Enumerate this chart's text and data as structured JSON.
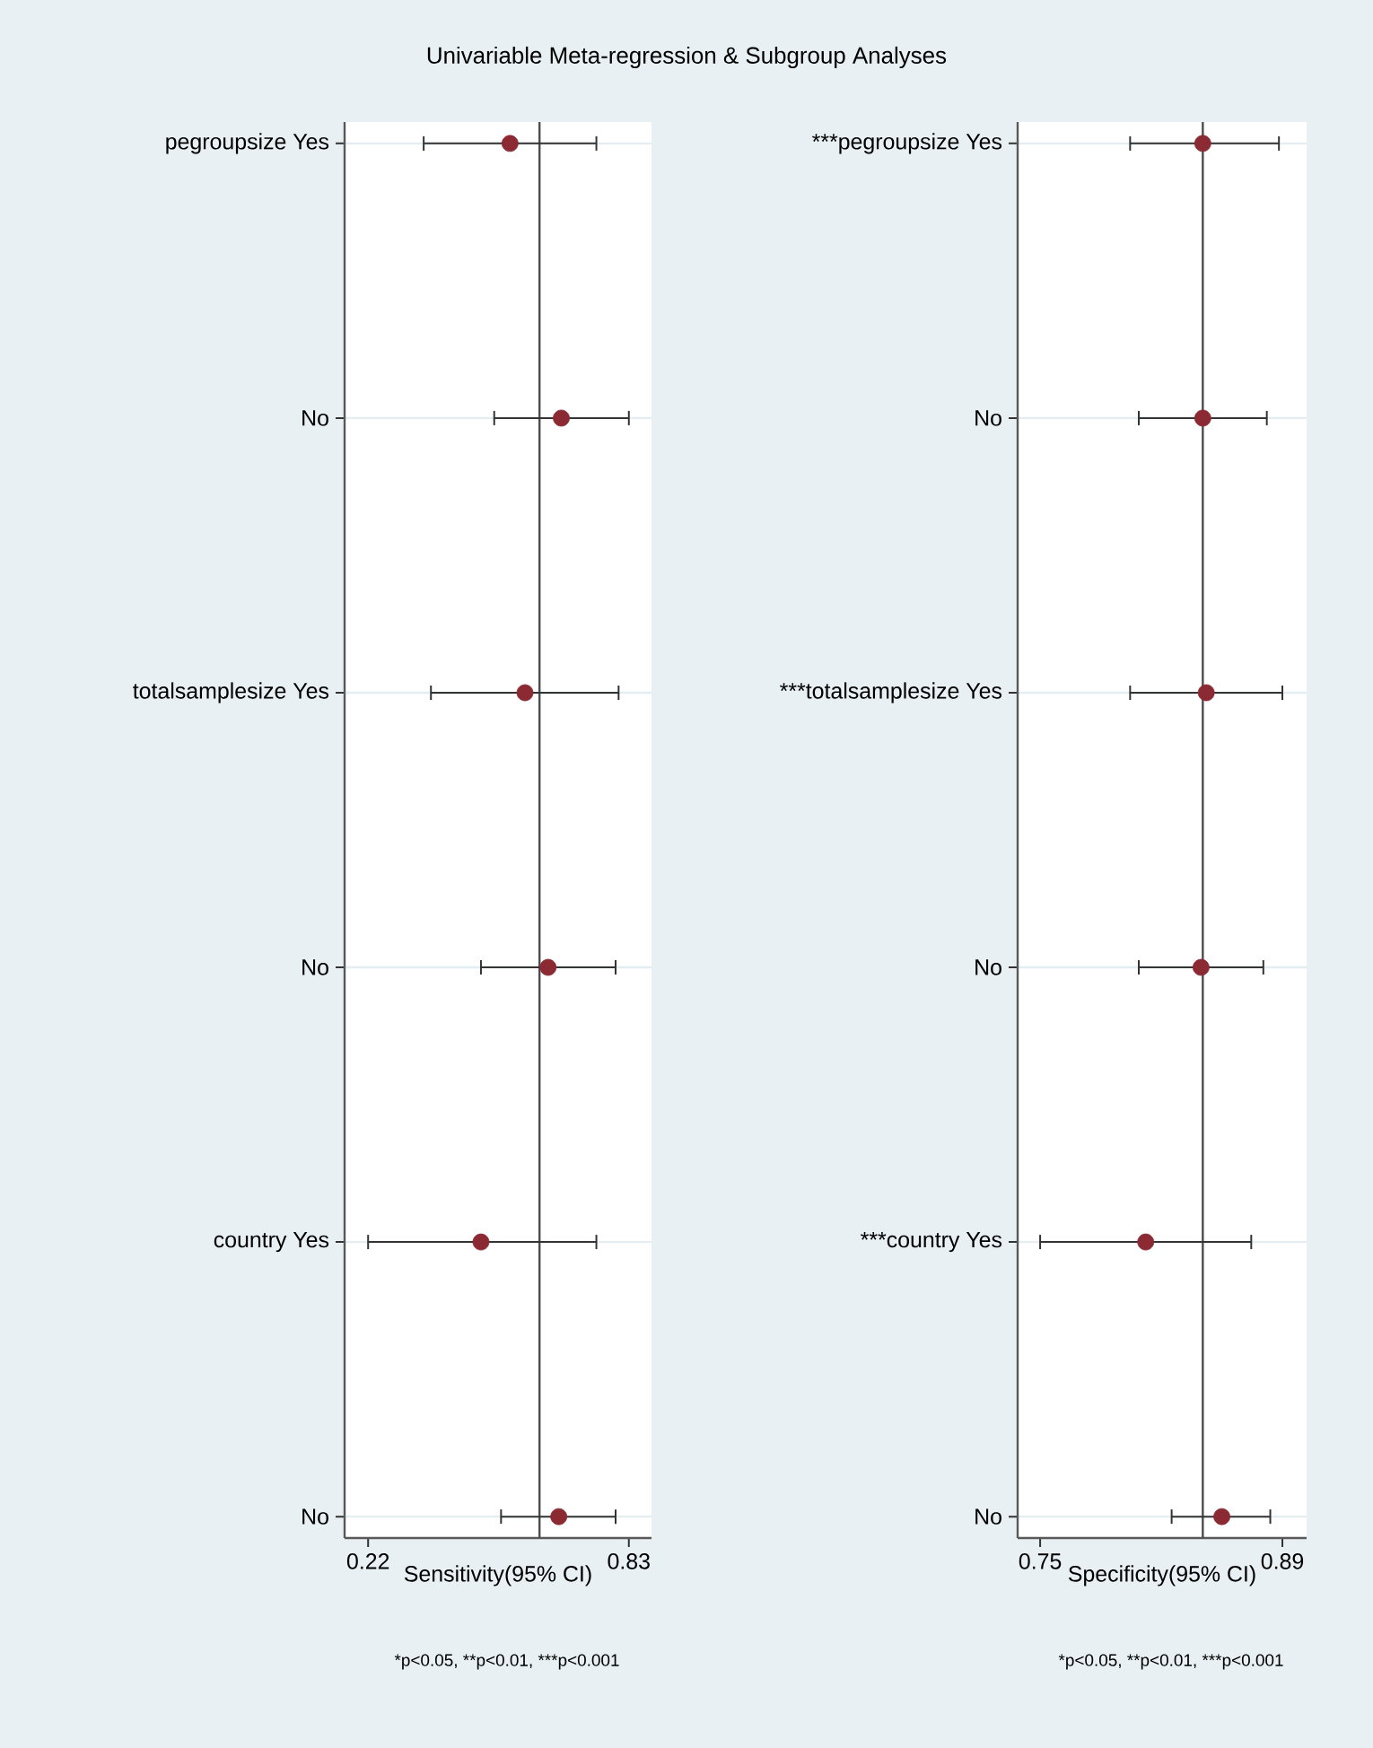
{
  "chart_data": [
    {
      "type": "scatter",
      "title": "Univariable Meta-regression & Subgroup Analyses",
      "orientation": "horizontal",
      "categories": [
        "pegroupsize Yes",
        "No",
        "totalsamplesize Yes",
        "No",
        "country Yes",
        "No"
      ],
      "values": [
        0.552,
        0.672,
        0.587,
        0.641,
        0.484,
        0.666
      ],
      "errors": [
        [
          0.35,
          0.754
        ],
        [
          0.515,
          0.83
        ],
        [
          0.367,
          0.806
        ],
        [
          0.484,
          0.799
        ],
        [
          0.22,
          0.754
        ],
        [
          0.531,
          0.799
        ]
      ],
      "color": "#8b2a33",
      "marker": "circle",
      "grid": "y",
      "xlim": [
        0.165,
        0.883
      ],
      "xticks": [
        0.22,
        0.83
      ],
      "xlabel": "Sensitivity(95% CI)",
      "ref_lines": [
        {
          "axis": "x",
          "value": 0.621
        }
      ],
      "annotations": [
        "*p<0.05,",
        "**p<0.01,",
        "***p<0.001"
      ]
    },
    {
      "type": "scatter",
      "orientation": "horizontal",
      "categories": [
        "***pegroupsize Yes",
        "No",
        "***totalsamplesize Yes",
        "No",
        "***country Yes",
        "No"
      ],
      "values": [
        0.844,
        0.844,
        0.846,
        0.843,
        0.811,
        0.855
      ],
      "errors": [
        [
          0.802,
          0.888
        ],
        [
          0.807,
          0.881
        ],
        [
          0.802,
          0.89
        ],
        [
          0.807,
          0.879
        ],
        [
          0.75,
          0.872
        ],
        [
          0.826,
          0.883
        ]
      ],
      "color": "#8b2a33",
      "marker": "circle",
      "grid": "y",
      "xlim": [
        0.737,
        0.904
      ],
      "xticks": [
        0.75,
        0.89
      ],
      "xlabel": "Specificity(95% CI)",
      "ref_lines": [
        {
          "axis": "x",
          "value": 0.844
        }
      ],
      "annotations": [
        "*p<0.05,",
        "**p<0.01,",
        "***p<0.001"
      ]
    }
  ]
}
